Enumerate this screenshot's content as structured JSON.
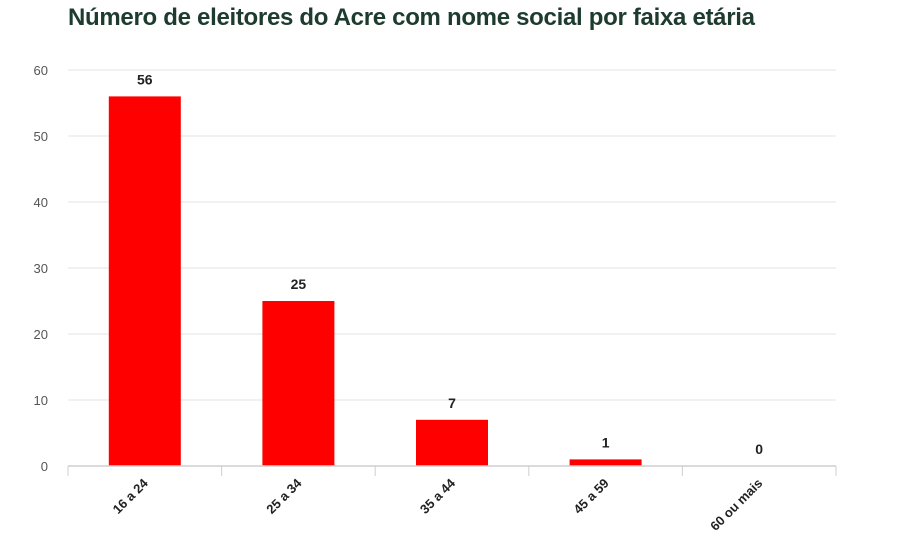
{
  "chart_data": {
    "type": "bar",
    "title": "Número de eleitores do Acre com nome social por faixa etária",
    "categories": [
      "16 a 24",
      "25 a 34",
      "35 a 44",
      "45 a 59",
      "60 ou mais"
    ],
    "values": [
      56,
      25,
      7,
      1,
      0
    ],
    "ylim": [
      0,
      60
    ],
    "yticks": [
      0,
      10,
      20,
      30,
      40,
      50,
      60
    ],
    "grid": true,
    "legend": "none",
    "bar_color": "#ff0000"
  }
}
